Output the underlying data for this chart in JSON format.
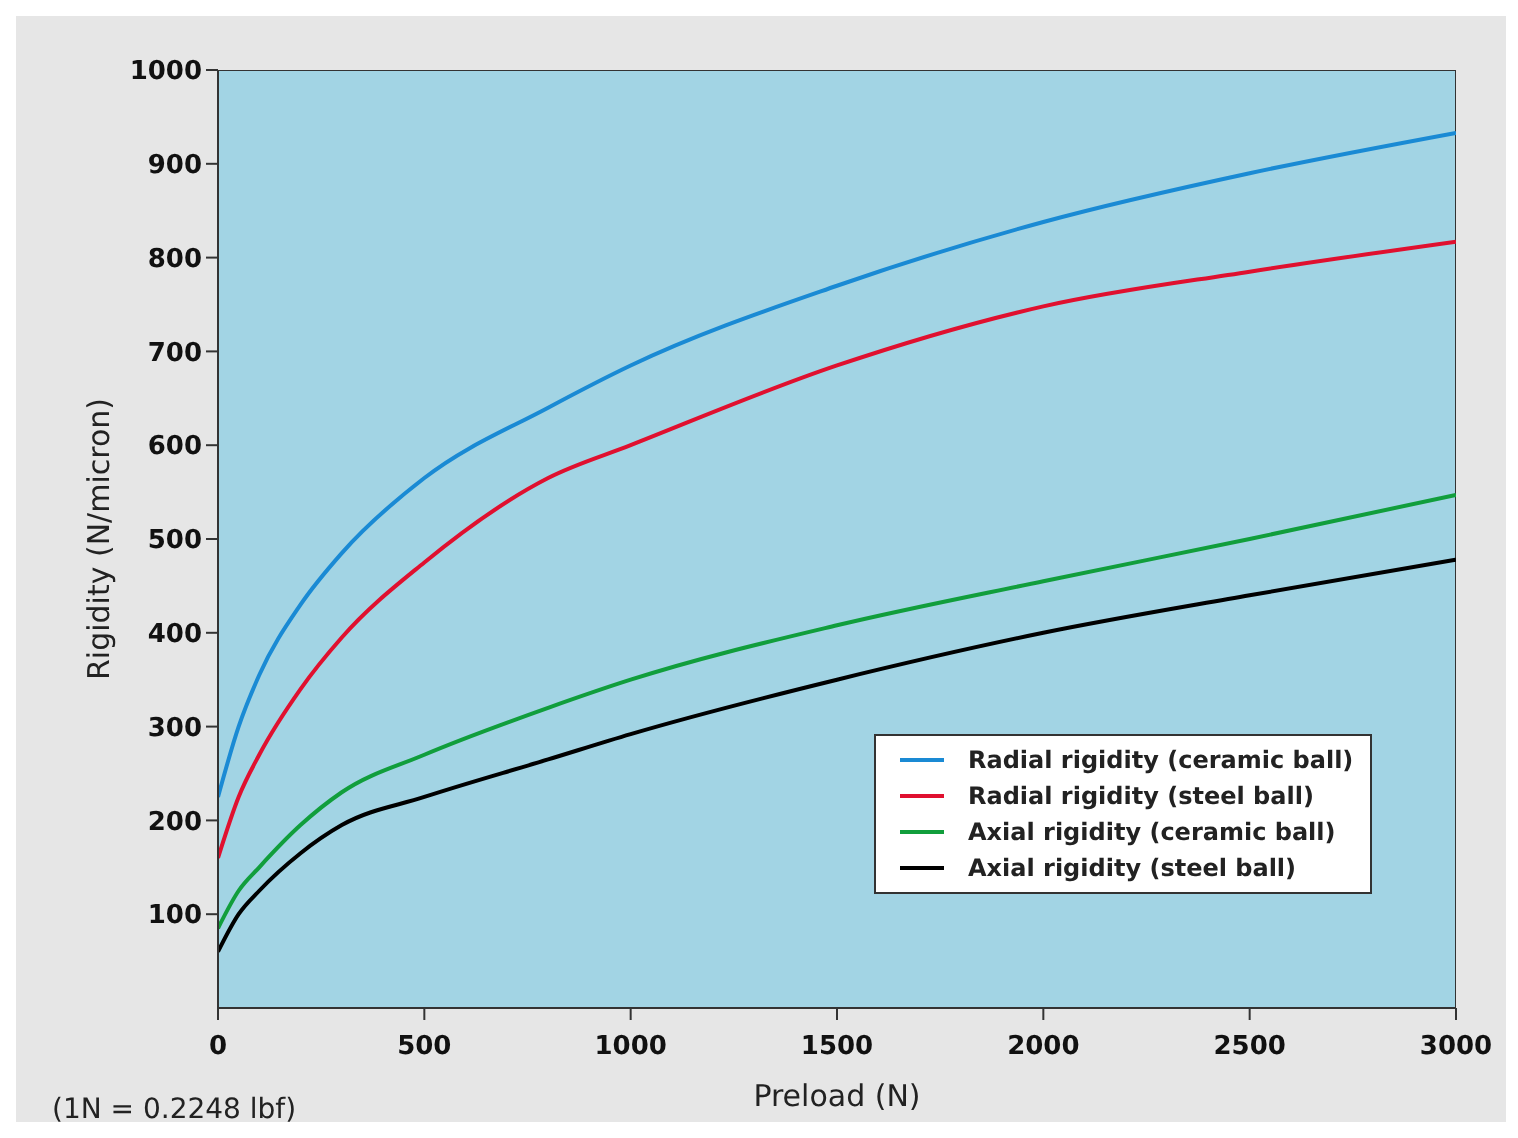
{
  "chart_data": {
    "type": "line",
    "xlabel": "Preload (N)",
    "ylabel": "Rigidity (N/micron)",
    "annotations": [
      "(1N = 0.2248 lbf)"
    ],
    "x": [
      0,
      50,
      100,
      200,
      300,
      500,
      800,
      1000,
      1500,
      2000,
      2500,
      3000
    ],
    "series": [
      {
        "name": "Radial rigidity (ceramic ball)",
        "color": "#1a8ad4",
        "values": [
          225,
          300,
          355,
          430,
          485,
          565,
          640,
          685,
          770,
          838,
          890,
          933
        ]
      },
      {
        "name": "Radial rigidity (steel ball)",
        "color": "#e0102f",
        "values": [
          160,
          225,
          270,
          340,
          395,
          475,
          565,
          600,
          685,
          748,
          785,
          817
        ]
      },
      {
        "name": "Axial rigidity (ceramic ball)",
        "color": "#119e3c",
        "values": [
          85,
          125,
          150,
          195,
          230,
          270,
          320,
          350,
          408,
          455,
          500,
          547
        ]
      },
      {
        "name": "Axial rigidity (steel ball)",
        "color": "#000000",
        "values": [
          60,
          100,
          125,
          165,
          195,
          225,
          265,
          292,
          350,
          400,
          440,
          478
        ]
      }
    ],
    "xlim": [
      0,
      3000
    ],
    "xticks": [
      0,
      500,
      1000,
      1500,
      2000,
      2500,
      3000
    ],
    "ylim": [
      0,
      1000
    ],
    "yticks": [
      100,
      200,
      300,
      400,
      500,
      600,
      700,
      800,
      900,
      1000
    ],
    "grid": false,
    "legend": "bottom right",
    "marker": "none",
    "line_style": "solid"
  }
}
